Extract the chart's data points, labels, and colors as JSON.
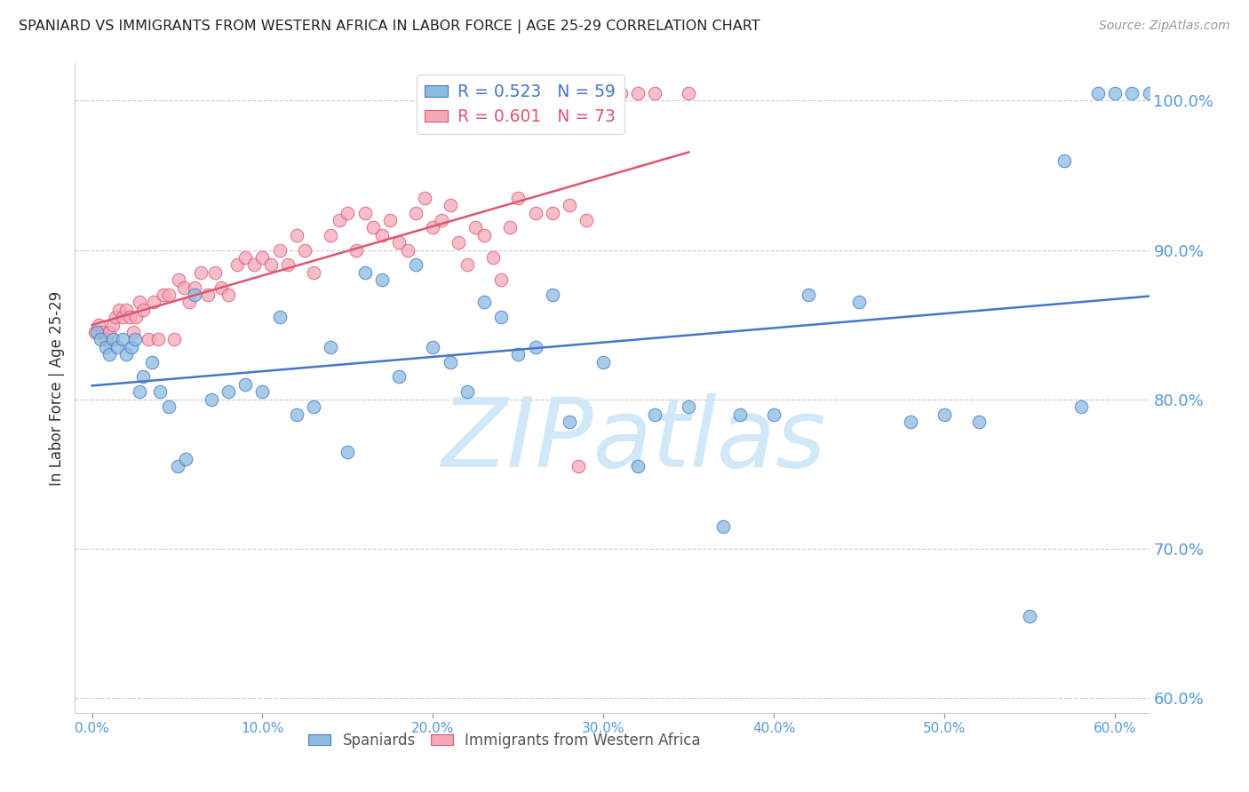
{
  "title": "SPANIARD VS IMMIGRANTS FROM WESTERN AFRICA IN LABOR FORCE | AGE 25-29 CORRELATION CHART",
  "source": "Source: ZipAtlas.com",
  "ylabel": "In Labor Force | Age 25-29",
  "right_yticks": [
    60.0,
    70.0,
    80.0,
    90.0,
    100.0
  ],
  "xticks": [
    0.0,
    10.0,
    20.0,
    30.0,
    40.0,
    50.0,
    60.0
  ],
  "xlim": [
    -1.0,
    62.0
  ],
  "ylim": [
    59,
    102.5
  ],
  "blue_R": 0.523,
  "blue_N": 59,
  "pink_R": 0.601,
  "pink_N": 73,
  "blue_color": "#8bbcdf",
  "pink_color": "#f4a8b8",
  "blue_line_color": "#4477cc",
  "pink_line_color": "#e05570",
  "axis_color": "#5599dd",
  "watermark": "ZIPatlas",
  "watermark_color": "#d0e8f8",
  "blue_x": [
    0.3,
    0.5,
    0.8,
    1.0,
    1.2,
    1.5,
    1.8,
    2.0,
    2.3,
    2.5,
    2.8,
    3.0,
    3.5,
    4.0,
    4.5,
    5.0,
    5.5,
    6.0,
    7.0,
    8.0,
    9.0,
    10.0,
    11.0,
    12.0,
    13.0,
    14.0,
    15.0,
    16.0,
    17.0,
    18.0,
    19.0,
    20.0,
    21.0,
    22.0,
    23.0,
    24.0,
    25.0,
    26.0,
    27.0,
    28.0,
    30.0,
    32.0,
    33.0,
    35.0,
    37.0,
    38.0,
    40.0,
    42.0,
    45.0,
    48.0,
    50.0,
    52.0,
    55.0,
    57.0,
    58.0,
    59.0,
    60.0,
    61.0,
    62.0
  ],
  "blue_y": [
    84.5,
    84.0,
    83.5,
    83.0,
    84.0,
    83.5,
    84.0,
    83.0,
    83.5,
    84.0,
    80.5,
    81.5,
    82.5,
    80.5,
    79.5,
    75.5,
    76.0,
    87.0,
    80.0,
    80.5,
    81.0,
    80.5,
    85.5,
    79.0,
    79.5,
    83.5,
    76.5,
    88.5,
    88.0,
    81.5,
    89.0,
    83.5,
    82.5,
    80.5,
    86.5,
    85.5,
    83.0,
    83.5,
    87.0,
    78.5,
    82.5,
    75.5,
    79.0,
    79.5,
    71.5,
    79.0,
    79.0,
    87.0,
    86.5,
    78.5,
    79.0,
    78.5,
    65.5,
    96.0,
    79.5,
    100.5,
    100.5,
    100.5,
    100.5
  ],
  "pink_x": [
    0.2,
    0.4,
    0.6,
    0.8,
    1.0,
    1.2,
    1.4,
    1.6,
    1.8,
    2.0,
    2.2,
    2.4,
    2.6,
    2.8,
    3.0,
    3.3,
    3.6,
    3.9,
    4.2,
    4.5,
    4.8,
    5.1,
    5.4,
    5.7,
    6.0,
    6.4,
    6.8,
    7.2,
    7.6,
    8.0,
    8.5,
    9.0,
    9.5,
    10.0,
    10.5,
    11.0,
    11.5,
    12.0,
    12.5,
    13.0,
    14.0,
    14.5,
    15.0,
    15.5,
    16.0,
    16.5,
    17.0,
    17.5,
    18.0,
    18.5,
    19.0,
    19.5,
    20.0,
    20.5,
    21.0,
    21.5,
    22.0,
    22.5,
    23.0,
    23.5,
    24.0,
    24.5,
    25.0,
    26.0,
    27.0,
    28.0,
    28.5,
    29.0,
    30.0,
    31.0,
    32.0,
    33.0,
    35.0
  ],
  "pink_y": [
    84.5,
    85.0,
    84.5,
    84.0,
    84.5,
    85.0,
    85.5,
    86.0,
    85.5,
    86.0,
    85.5,
    84.5,
    85.5,
    86.5,
    86.0,
    84.0,
    86.5,
    84.0,
    87.0,
    87.0,
    84.0,
    88.0,
    87.5,
    86.5,
    87.5,
    88.5,
    87.0,
    88.5,
    87.5,
    87.0,
    89.0,
    89.5,
    89.0,
    89.5,
    89.0,
    90.0,
    89.0,
    91.0,
    90.0,
    88.5,
    91.0,
    92.0,
    92.5,
    90.0,
    92.5,
    91.5,
    91.0,
    92.0,
    90.5,
    90.0,
    92.5,
    93.5,
    91.5,
    92.0,
    93.0,
    90.5,
    89.0,
    91.5,
    91.0,
    89.5,
    88.0,
    91.5,
    93.5,
    92.5,
    92.5,
    93.0,
    75.5,
    92.0,
    100.5,
    100.5,
    100.5,
    100.5,
    100.5
  ]
}
